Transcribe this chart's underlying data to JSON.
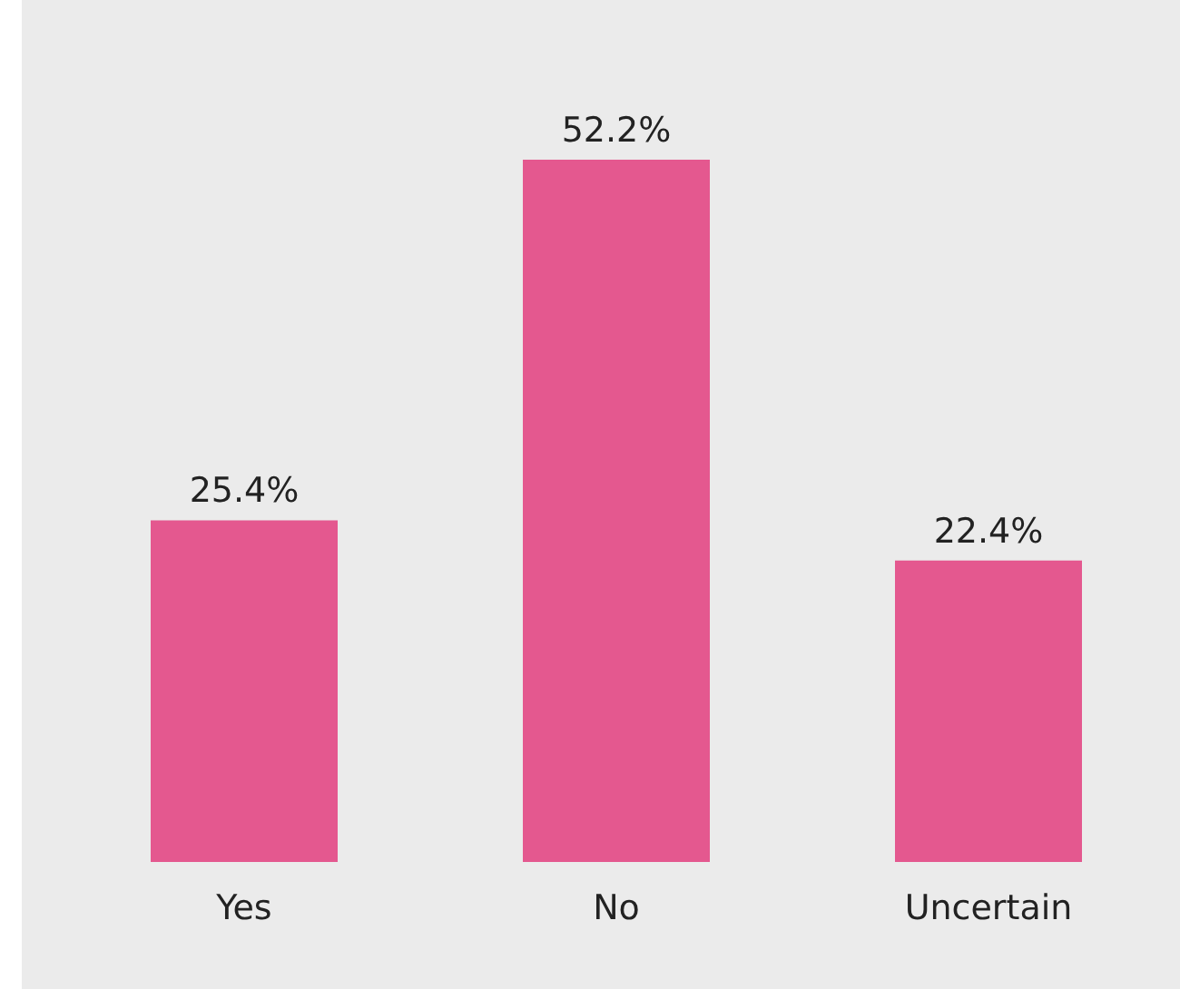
{
  "chart_data": {
    "type": "bar",
    "categories": [
      "Yes",
      "No",
      "Uncertain"
    ],
    "values": [
      25.4,
      52.2,
      22.4
    ],
    "value_labels": [
      "25.4%",
      "52.2%",
      "22.4%"
    ],
    "color": "#e4588f"
  }
}
